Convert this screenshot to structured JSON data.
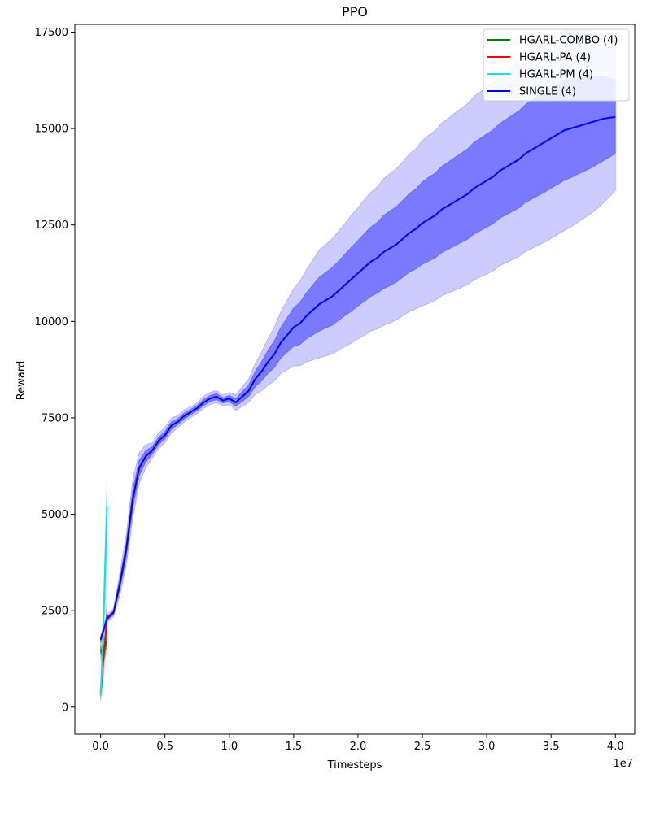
{
  "chart_data": {
    "type": "line",
    "title": "PPO",
    "xlabel": "Timesteps",
    "ylabel": "Reward",
    "x_offset_label": "1e7",
    "xlim": [
      -0.2,
      4.15
    ],
    "ylim": [
      -700,
      17700
    ],
    "x_ticks": [
      0.0,
      0.5,
      1.0,
      1.5,
      2.0,
      2.5,
      3.0,
      3.5,
      4.0
    ],
    "x_tick_labels": [
      "0.0",
      "0.5",
      "1.0",
      "1.5",
      "2.0",
      "2.5",
      "3.0",
      "3.5",
      "4.0"
    ],
    "y_ticks": [
      0,
      2500,
      5000,
      7500,
      10000,
      12500,
      15000,
      17500
    ],
    "y_tick_labels": [
      "0",
      "2500",
      "5000",
      "7500",
      "10000",
      "12500",
      "15000",
      "17500"
    ],
    "legend_position": "top-right",
    "series": [
      {
        "name": "HGARL-COMBO (4)",
        "color": "#008000",
        "x": [
          0.0,
          0.01,
          0.02,
          0.03,
          0.04,
          0.05
        ],
        "y": [
          1500,
          1400,
          1450,
          1550,
          1600,
          1700
        ],
        "lower1": [
          1380,
          1280,
          1320,
          1420,
          1470,
          1560
        ],
        "upper1": [
          1620,
          1520,
          1580,
          1680,
          1730,
          1840
        ],
        "lower2": [
          1250,
          1150,
          1200,
          1300,
          1350,
          1430
        ],
        "upper2": [
          1750,
          1650,
          1700,
          1800,
          1850,
          1970
        ]
      },
      {
        "name": "HGARL-PA (4)",
        "color": "#ff0000",
        "x": [
          0.0,
          0.01,
          0.02,
          0.03,
          0.04,
          0.05
        ],
        "y": [
          400,
          700,
          1200,
          1500,
          1900,
          2400
        ],
        "lower1": [
          300,
          550,
          1000,
          1300,
          1700,
          2150
        ],
        "upper1": [
          500,
          850,
          1400,
          1700,
          2100,
          2650
        ],
        "lower2": [
          200,
          400,
          800,
          1100,
          1500,
          1900
        ],
        "upper2": [
          600,
          1000,
          1600,
          1900,
          2300,
          2900
        ]
      },
      {
        "name": "HGARL-PM (4)",
        "color": "#00e5ee",
        "x": [
          0.0,
          0.01,
          0.02,
          0.03,
          0.04,
          0.05
        ],
        "y": [
          300,
          1000,
          2000,
          3000,
          4100,
          5200
        ],
        "lower1": [
          200,
          800,
          1700,
          2600,
          3600,
          4700
        ],
        "upper1": [
          400,
          1200,
          2300,
          3400,
          4600,
          5700
        ],
        "lower2": [
          100,
          600,
          1400,
          2200,
          3100,
          4200
        ],
        "upper2": [
          500,
          1400,
          2600,
          3800,
          5100,
          5900
        ]
      },
      {
        "name": "SINGLE (4)",
        "color": "#0000ff",
        "x": [
          0.0,
          0.05,
          0.1,
          0.15,
          0.2,
          0.25,
          0.3,
          0.35,
          0.4,
          0.45,
          0.5,
          0.55,
          0.6,
          0.65,
          0.7,
          0.75,
          0.8,
          0.85,
          0.9,
          0.95,
          1.0,
          1.05,
          1.1,
          1.15,
          1.2,
          1.25,
          1.3,
          1.35,
          1.4,
          1.45,
          1.5,
          1.55,
          1.6,
          1.65,
          1.7,
          1.75,
          1.8,
          1.85,
          1.9,
          1.95,
          2.0,
          2.05,
          2.1,
          2.15,
          2.2,
          2.25,
          2.3,
          2.35,
          2.4,
          2.45,
          2.5,
          2.55,
          2.6,
          2.65,
          2.7,
          2.75,
          2.8,
          2.85,
          2.9,
          2.95,
          3.0,
          3.05,
          3.1,
          3.15,
          3.2,
          3.25,
          3.3,
          3.35,
          3.4,
          3.45,
          3.5,
          3.55,
          3.6,
          3.65,
          3.7,
          3.75,
          3.8,
          3.85,
          3.9,
          3.95,
          4.0
        ],
        "y": [
          1750,
          2300,
          2450,
          3200,
          4100,
          5400,
          6200,
          6500,
          6650,
          6900,
          7050,
          7300,
          7400,
          7550,
          7650,
          7750,
          7900,
          8000,
          8050,
          7950,
          8000,
          7900,
          8050,
          8200,
          8500,
          8700,
          8950,
          9150,
          9450,
          9650,
          9850,
          9950,
          10150,
          10300,
          10450,
          10550,
          10650,
          10800,
          10950,
          11100,
          11250,
          11400,
          11550,
          11650,
          11800,
          11900,
          12000,
          12150,
          12300,
          12400,
          12550,
          12650,
          12750,
          12900,
          13000,
          13100,
          13200,
          13300,
          13450,
          13550,
          13650,
          13750,
          13900,
          14000,
          14100,
          14200,
          14350,
          14450,
          14550,
          14650,
          14750,
          14850,
          14950,
          15000,
          15050,
          15100,
          15150,
          15200,
          15250,
          15280,
          15300
        ],
        "lower1": [
          1700,
          2250,
          2400,
          3050,
          3900,
          5150,
          6000,
          6350,
          6550,
          6800,
          6950,
          7200,
          7320,
          7470,
          7580,
          7680,
          7820,
          7920,
          7970,
          7880,
          7920,
          7800,
          7920,
          8050,
          8300,
          8450,
          8650,
          8800,
          9050,
          9200,
          9350,
          9400,
          9550,
          9650,
          9750,
          9830,
          9900,
          10030,
          10150,
          10270,
          10400,
          10520,
          10650,
          10730,
          10850,
          10930,
          11020,
          11150,
          11280,
          11360,
          11480,
          11560,
          11650,
          11780,
          11870,
          11950,
          12040,
          12130,
          12260,
          12350,
          12440,
          12530,
          12670,
          12760,
          12850,
          12940,
          13080,
          13170,
          13260,
          13350,
          13450,
          13550,
          13650,
          13720,
          13800,
          13880,
          13960,
          14050,
          14150,
          14250,
          14350
        ],
        "upper1": [
          1800,
          2350,
          2500,
          3350,
          4300,
          5650,
          6400,
          6650,
          6750,
          7000,
          7150,
          7400,
          7480,
          7630,
          7720,
          7820,
          7980,
          8080,
          8130,
          8020,
          8080,
          8000,
          8180,
          8350,
          8700,
          8950,
          9250,
          9500,
          9850,
          10100,
          10350,
          10500,
          10750,
          10950,
          11150,
          11270,
          11400,
          11570,
          11750,
          11930,
          12100,
          12280,
          12450,
          12570,
          12750,
          12870,
          12980,
          13150,
          13320,
          13440,
          13620,
          13740,
          13850,
          14020,
          14130,
          14250,
          14360,
          14470,
          14640,
          14750,
          14860,
          14970,
          15130,
          15240,
          15350,
          15460,
          15620,
          15730,
          15840,
          15950,
          16050,
          16150,
          16250,
          16280,
          16300,
          16320,
          16340,
          16350,
          16350,
          16310,
          16250
        ],
        "lower2": [
          1650,
          2200,
          2350,
          2900,
          3700,
          4900,
          5800,
          6200,
          6450,
          6700,
          6850,
          7100,
          7240,
          7390,
          7510,
          7610,
          7740,
          7840,
          7890,
          7810,
          7840,
          7700,
          7790,
          7900,
          8100,
          8200,
          8350,
          8450,
          8650,
          8750,
          8850,
          8850,
          8950,
          9000,
          9050,
          9110,
          9150,
          9260,
          9350,
          9440,
          9550,
          9640,
          9750,
          9810,
          9900,
          9960,
          10040,
          10150,
          10260,
          10320,
          10410,
          10470,
          10550,
          10660,
          10740,
          10800,
          10880,
          10960,
          11070,
          11150,
          11230,
          11310,
          11440,
          11520,
          11600,
          11680,
          11810,
          11890,
          11970,
          12050,
          12150,
          12250,
          12350,
          12440,
          12550,
          12660,
          12770,
          12900,
          13050,
          13220,
          13400
        ],
        "upper2": [
          1850,
          2400,
          2550,
          3500,
          4500,
          5900,
          6600,
          6800,
          6850,
          7100,
          7250,
          7500,
          7560,
          7710,
          7790,
          7890,
          8060,
          8160,
          8210,
          8090,
          8160,
          8100,
          8310,
          8500,
          8900,
          9200,
          9550,
          9850,
          10250,
          10550,
          10850,
          11050,
          11350,
          11600,
          11850,
          11990,
          12150,
          12340,
          12550,
          12760,
          12950,
          13160,
          13350,
          13490,
          13700,
          13840,
          13960,
          14150,
          14340,
          14480,
          14690,
          14830,
          14950,
          15140,
          15260,
          15400,
          15520,
          15640,
          15830,
          15950,
          16070,
          16190,
          16360,
          16480,
          16600,
          16720,
          16890,
          17010,
          17130,
          17250,
          17350,
          17450,
          17550,
          17560,
          17550,
          17540,
          17530,
          17500,
          17450,
          17340,
          17200
        ]
      }
    ]
  }
}
